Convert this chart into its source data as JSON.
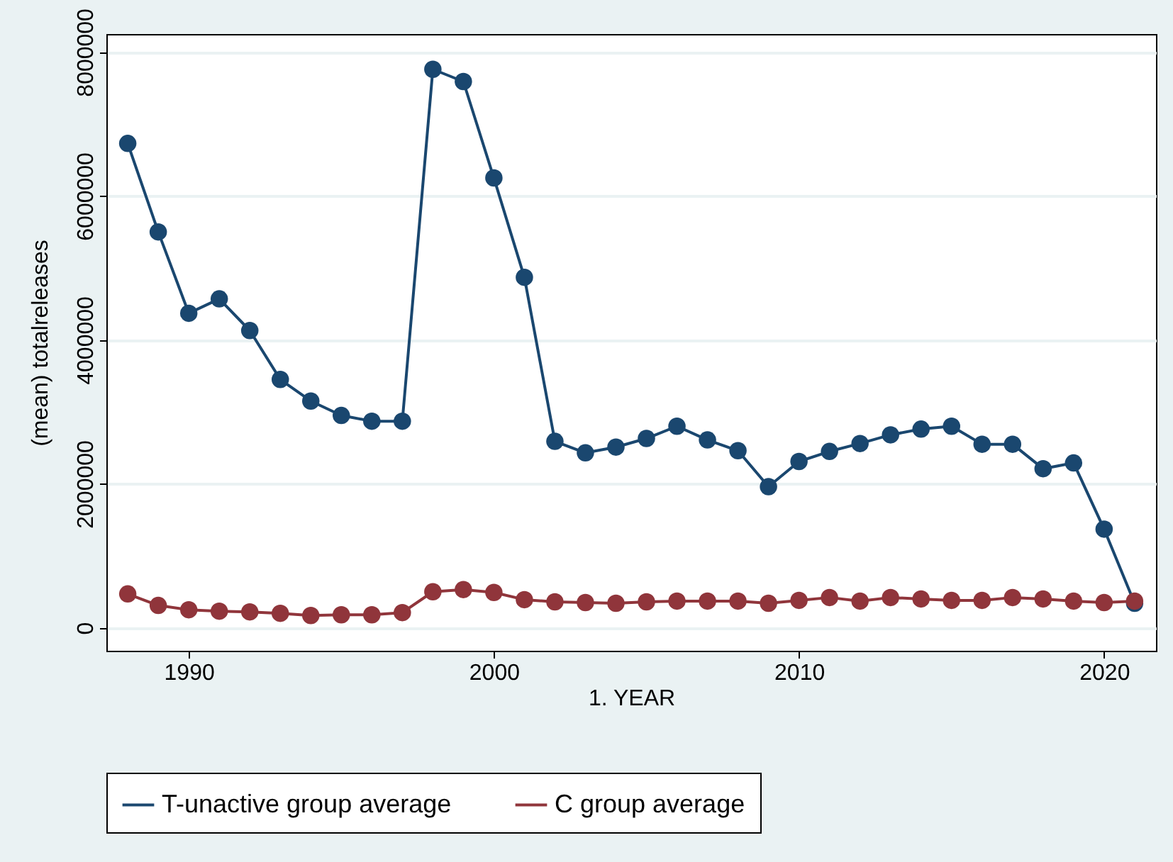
{
  "chart_data": {
    "type": "line",
    "xlabel": "1. YEAR",
    "ylabel": "(mean) totalreleases",
    "x": [
      1988,
      1989,
      1990,
      1991,
      1992,
      1993,
      1994,
      1995,
      1996,
      1997,
      1998,
      1999,
      2000,
      2001,
      2002,
      2003,
      2004,
      2005,
      2006,
      2007,
      2008,
      2009,
      2010,
      2011,
      2012,
      2013,
      2014,
      2015,
      2016,
      2017,
      2018,
      2019,
      2020,
      2021
    ],
    "series": [
      {
        "name": "T-unactive group average",
        "color": "#1a476f",
        "values": [
          6730000,
          5500000,
          4370000,
          4570000,
          4130000,
          3450000,
          3150000,
          2950000,
          2870000,
          2870000,
          7760000,
          7590000,
          6250000,
          4870000,
          2590000,
          2430000,
          2510000,
          2630000,
          2800000,
          2610000,
          2460000,
          1960000,
          2310000,
          2450000,
          2560000,
          2680000,
          2760000,
          2800000,
          2550000,
          2550000,
          2210000,
          2290000,
          1370000,
          340000
        ]
      },
      {
        "name": "C group average",
        "color": "#90353b",
        "values": [
          470000,
          310000,
          250000,
          230000,
          220000,
          200000,
          170000,
          180000,
          180000,
          210000,
          500000,
          530000,
          490000,
          390000,
          360000,
          350000,
          340000,
          360000,
          370000,
          370000,
          370000,
          340000,
          380000,
          420000,
          370000,
          420000,
          400000,
          380000,
          380000,
          420000,
          400000,
          370000,
          350000,
          370000
        ]
      }
    ],
    "xlim": [
      1987.3,
      2021.7
    ],
    "xticks": [
      1990,
      2000,
      2010,
      2020
    ],
    "ylim": [
      -320000,
      8250000
    ],
    "yticks": [
      0,
      2000000,
      4000000,
      6000000,
      8000000
    ],
    "grid": "y",
    "legend": "bottom",
    "marker": "circle",
    "line_style": "solid"
  }
}
